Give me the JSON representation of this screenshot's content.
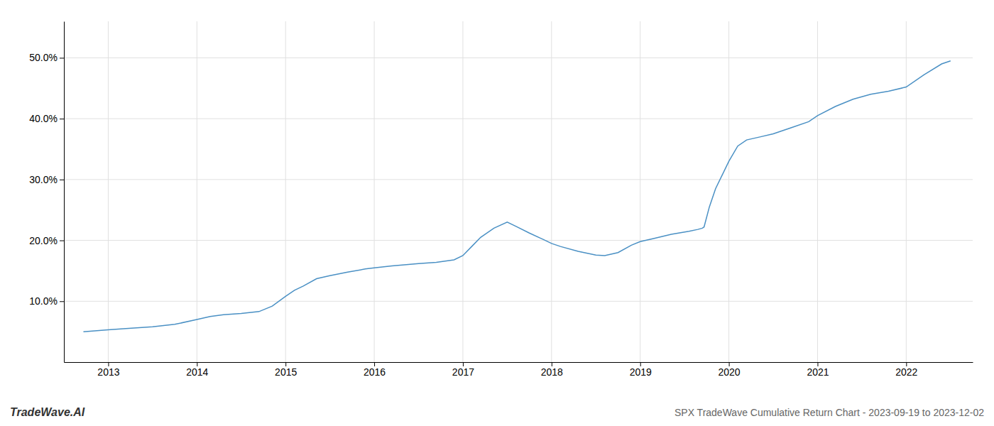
{
  "chart_data": {
    "type": "line",
    "title": "SPX TradeWave Cumulative Return Chart - 2023-09-19 to 2023-12-02",
    "annotations": [
      "TradeWave.AI"
    ],
    "color": "#4a90c4",
    "grid": true,
    "x": [
      2012.72,
      2013.0,
      2013.2,
      2013.5,
      2013.75,
      2014.0,
      2014.15,
      2014.3,
      2014.5,
      2014.7,
      2014.85,
      2015.0,
      2015.1,
      2015.2,
      2015.35,
      2015.5,
      2015.7,
      2015.9,
      2016.0,
      2016.2,
      2016.5,
      2016.7,
      2016.9,
      2017.0,
      2017.1,
      2017.2,
      2017.35,
      2017.5,
      2017.6,
      2017.75,
      2017.9,
      2018.0,
      2018.1,
      2018.3,
      2018.5,
      2018.6,
      2018.75,
      2018.9,
      2019.0,
      2019.15,
      2019.35,
      2019.55,
      2019.65,
      2019.7,
      2019.72,
      2019.78,
      2019.85,
      2020.0,
      2020.1,
      2020.2,
      2020.35,
      2020.5,
      2020.7,
      2020.9,
      2021.0,
      2021.2,
      2021.4,
      2021.6,
      2021.8,
      2022.0,
      2022.2,
      2022.4,
      2022.5
    ],
    "values": [
      5.0,
      5.3,
      5.5,
      5.8,
      6.2,
      7.0,
      7.5,
      7.8,
      8.0,
      8.3,
      9.2,
      10.8,
      11.8,
      12.5,
      13.7,
      14.2,
      14.8,
      15.3,
      15.5,
      15.8,
      16.2,
      16.4,
      16.8,
      17.5,
      19.0,
      20.5,
      22.0,
      23.0,
      22.3,
      21.2,
      20.2,
      19.5,
      19.0,
      18.2,
      17.6,
      17.5,
      18.0,
      19.2,
      19.8,
      20.3,
      21.0,
      21.5,
      21.8,
      22.0,
      22.2,
      25.5,
      28.5,
      33.0,
      35.5,
      36.5,
      37.0,
      37.5,
      38.5,
      39.5,
      40.5,
      42.0,
      43.2,
      44.0,
      44.5,
      45.2,
      47.2,
      49.0,
      49.5
    ],
    "xlim": [
      2012.5,
      2022.75
    ],
    "xticks": [
      2013,
      2014,
      2015,
      2016,
      2017,
      2018,
      2019,
      2020,
      2021,
      2022
    ],
    "ylim": [
      0,
      56
    ],
    "yticks": [
      {
        "value": 10.0,
        "label": "10.0%"
      },
      {
        "value": 20.0,
        "label": "20.0%"
      },
      {
        "value": 30.0,
        "label": "30.0%"
      },
      {
        "value": 40.0,
        "label": "40.0%"
      },
      {
        "value": 50.0,
        "label": "50.0%"
      }
    ]
  }
}
